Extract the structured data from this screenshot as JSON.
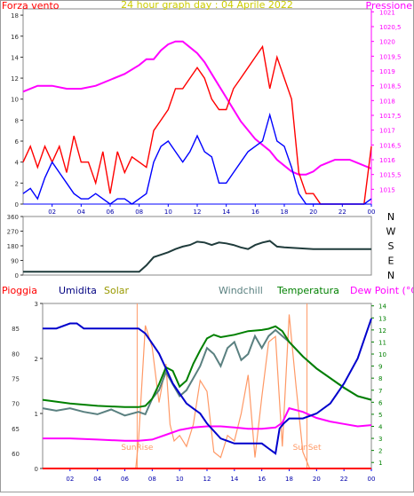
{
  "chart_data": [
    {
      "type": "line",
      "title": "24 hour graph day : 04 Aprile 2022",
      "left_label": "Forza vento",
      "right_label": "Pressione",
      "x_ticks": [
        "02",
        "04",
        "06",
        "08",
        "10",
        "12",
        "14",
        "16",
        "18",
        "20",
        "22",
        "00"
      ],
      "y_left_ticks": [
        "0",
        "2",
        "4",
        "6",
        "8",
        "10",
        "12",
        "14",
        "16",
        "18"
      ],
      "y_left_range": [
        0,
        18.6
      ],
      "y_right_ticks": [
        "1015",
        "1015,5",
        "1016",
        "1016,5",
        "1017",
        "1017,5",
        "1018",
        "1018,5",
        "1019",
        "1019,5",
        "1020",
        "1020,5",
        "1021"
      ],
      "y_right_range": [
        1014.5,
        1021.1
      ],
      "series": [
        {
          "axis": "right",
          "color": "#ff00ff",
          "x": [
            0,
            1,
            2,
            3,
            4,
            5,
            6,
            7,
            8,
            8.5,
            9,
            9.5,
            10,
            10.5,
            11,
            11.5,
            12,
            12.5,
            13,
            13.5,
            14,
            14.5,
            15,
            15.5,
            16,
            16.5,
            17,
            17.5,
            18,
            18.5,
            19,
            19.5,
            20,
            20.5,
            21,
            21.5,
            22,
            22.5,
            23,
            24
          ],
          "values": [
            1018.3,
            1018.5,
            1018.5,
            1018.4,
            1018.4,
            1018.5,
            1018.7,
            1018.9,
            1019.2,
            1019.4,
            1019.4,
            1019.7,
            1019.9,
            1020.0,
            1020.0,
            1019.8,
            1019.6,
            1019.3,
            1018.9,
            1018.5,
            1018.1,
            1017.7,
            1017.3,
            1017.0,
            1016.7,
            1016.5,
            1016.3,
            1016.0,
            1015.8,
            1015.6,
            1015.5,
            1015.5,
            1015.6,
            1015.8,
            1015.9,
            1016.0,
            1016.0,
            1016.0,
            1015.9,
            1015.7
          ]
        },
        {
          "axis": "left",
          "color": "#ff0000",
          "x": [
            0,
            0.5,
            1,
            1.5,
            2,
            2.5,
            3,
            3.5,
            4,
            4.5,
            5,
            5.5,
            6,
            6.5,
            7,
            7.5,
            8,
            8.5,
            9,
            9.5,
            10,
            10.5,
            11,
            11.5,
            12,
            12.5,
            13,
            13.5,
            14,
            14.5,
            15,
            15.5,
            16,
            16.5,
            17,
            17.5,
            18,
            18.5,
            19,
            19.5,
            20,
            20.5,
            21,
            21.5,
            22,
            22.5,
            23,
            23.5,
            24
          ],
          "values": [
            4,
            5.5,
            3.5,
            5.5,
            4,
            5.5,
            3,
            6.5,
            4,
            4,
            2,
            5,
            1,
            5,
            3,
            4.5,
            4,
            3.5,
            7,
            8,
            9,
            11,
            11,
            12,
            13,
            12,
            10,
            9,
            9,
            11,
            12,
            13,
            14,
            15,
            11,
            14,
            12,
            10,
            3,
            1,
            1,
            0,
            0,
            0,
            0,
            0,
            0,
            0,
            5.5
          ]
        },
        {
          "axis": "left",
          "color": "#0000ff",
          "x": [
            0,
            0.5,
            1,
            1.5,
            2,
            2.5,
            3,
            3.5,
            4,
            4.5,
            5,
            5.5,
            6,
            6.5,
            7,
            7.5,
            8,
            8.5,
            9,
            9.5,
            10,
            10.5,
            11,
            11.5,
            12,
            12.5,
            13,
            13.5,
            14,
            14.5,
            15,
            15.5,
            16,
            16.5,
            17,
            17.5,
            18,
            18.5,
            19,
            19.5,
            20,
            20.5,
            21,
            21.5,
            22,
            22.5,
            23,
            23.5,
            24
          ],
          "values": [
            1,
            1.5,
            0.5,
            2.5,
            4,
            3,
            2,
            1,
            0.5,
            0.5,
            1,
            0.5,
            0,
            0.5,
            0.5,
            0,
            0.5,
            1,
            4,
            5.5,
            6,
            5,
            4,
            5,
            6.5,
            5,
            4.5,
            2,
            2,
            3,
            4,
            5,
            5.5,
            6,
            8.5,
            6,
            5.5,
            3.5,
            1,
            0,
            0,
            0,
            0,
            0,
            0,
            0,
            0,
            0,
            0.5
          ]
        }
      ]
    },
    {
      "type": "line",
      "right_labels": [
        "N",
        "W",
        "S",
        "E",
        "N"
      ],
      "y_left_ticks": [
        "0",
        "90",
        "180",
        "270",
        "360"
      ],
      "y_range": [
        0,
        360
      ],
      "series": [
        {
          "color": "#1f3b3b",
          "x": [
            0,
            6,
            8,
            8.5,
            9,
            9.5,
            10,
            10.5,
            11,
            11.5,
            12,
            12.5,
            13,
            13.5,
            14,
            14.5,
            15,
            15.5,
            16,
            16.5,
            17,
            17.5,
            18,
            19,
            20,
            22,
            24
          ],
          "values": [
            20,
            20,
            20,
            60,
            110,
            125,
            140,
            160,
            175,
            185,
            205,
            200,
            185,
            200,
            195,
            185,
            170,
            160,
            185,
            200,
            210,
            175,
            170,
            165,
            160,
            160,
            160
          ]
        }
      ]
    },
    {
      "type": "line",
      "legend": [
        "Pioggia",
        "Umidita",
        "Solar",
        "Windchill",
        "Temperatura",
        "Dew Point (°C)"
      ],
      "y_left_ticks": [
        "60",
        "65",
        "70",
        "75",
        "80",
        "85"
      ],
      "y_left_range": [
        57,
        90
      ],
      "y_rain_ticks": [
        "0",
        "1",
        "2",
        "3"
      ],
      "y_right_ticks": [
        "1",
        "2",
        "3",
        "4",
        "5",
        "6",
        "7",
        "8",
        "9",
        "10",
        "11",
        "12",
        "13",
        "14"
      ],
      "y_right_range": [
        0.5,
        14.2
      ],
      "annotations": [
        "SunRise",
        "SunSet"
      ],
      "sunrise_hour": 6.9,
      "sunset_hour": 19.3,
      "series": [
        {
          "name": "Umidita",
          "color": "#0000cc",
          "x": [
            0,
            1,
            2,
            2.5,
            3,
            4,
            5,
            6,
            7,
            7.5,
            8,
            8.5,
            9,
            9.5,
            10,
            10.5,
            11,
            11.5,
            12,
            13,
            14,
            15,
            16,
            16.5,
            17,
            17.3,
            17.6,
            18,
            19,
            20,
            21,
            22,
            23,
            24
          ],
          "values": [
            85,
            85,
            86,
            86,
            85,
            85,
            85,
            85,
            85,
            84,
            82,
            80,
            77,
            74,
            72,
            70,
            69,
            68,
            66,
            63,
            62,
            62,
            62,
            61,
            60,
            65,
            66,
            67,
            67,
            68,
            70,
            74,
            79,
            87
          ]
        },
        {
          "name": "Dew Point",
          "color": "#ff00ff",
          "x": [
            0,
            2,
            4,
            6,
            7,
            8,
            9,
            10,
            11,
            12,
            13,
            14,
            15,
            16,
            17,
            17.5,
            18,
            19,
            20,
            21,
            22,
            23,
            24
          ],
          "values": [
            3.0,
            3.0,
            2.9,
            2.8,
            2.8,
            2.9,
            3.3,
            3.7,
            3.9,
            4.0,
            4.0,
            3.9,
            3.8,
            3.8,
            3.9,
            4.3,
            5.5,
            5.2,
            4.7,
            4.4,
            4.2,
            4.0,
            4.1
          ]
        },
        {
          "name": "Temperatura",
          "color": "#008000",
          "x": [
            0,
            2,
            4,
            6,
            7,
            7.5,
            8,
            8.5,
            9,
            9.5,
            10,
            10.5,
            11,
            11.5,
            12,
            12.5,
            13,
            14,
            15,
            16,
            16.5,
            17,
            17.5,
            18,
            19,
            20,
            21,
            22,
            23,
            24
          ],
          "values": [
            6.2,
            5.9,
            5.7,
            5.6,
            5.6,
            5.7,
            6.3,
            7.5,
            8.9,
            8.6,
            7.3,
            7.8,
            9.2,
            10.3,
            11.3,
            11.6,
            11.4,
            11.6,
            11.9,
            12.0,
            12.1,
            12.3,
            11.9,
            11.0,
            9.8,
            8.8,
            8.0,
            7.2,
            6.5,
            6.2
          ]
        },
        {
          "name": "Windchill",
          "color": "#5a8080",
          "x": [
            0,
            1,
            2,
            3,
            4,
            5,
            6,
            7,
            7.5,
            8,
            8.5,
            9,
            9.5,
            10,
            10.5,
            11,
            11.5,
            12,
            12.5,
            13,
            13.5,
            14,
            14.5,
            15,
            15.5,
            16,
            16.5,
            17,
            17.5,
            18,
            19,
            20,
            21,
            22,
            23,
            24
          ],
          "values": [
            5.5,
            5.3,
            5.5,
            5.2,
            5.0,
            5.4,
            4.9,
            5.2,
            5.0,
            6.3,
            7.0,
            8.5,
            7.5,
            6.5,
            7.0,
            8.0,
            9.0,
            10.5,
            10.0,
            9.0,
            10.5,
            11.0,
            9.5,
            10.0,
            11.5,
            10.5,
            11.5,
            12.0,
            11.5,
            11.0,
            9.8,
            8.8,
            8.0,
            7.2,
            6.5,
            6.2
          ]
        },
        {
          "name": "Solar",
          "color": "#ff9966",
          "scale": "rain",
          "x": [
            0,
            6.8,
            7,
            7.5,
            8,
            8.5,
            9,
            9.3,
            9.6,
            10,
            10.5,
            11,
            11.5,
            12,
            12.5,
            13,
            13.5,
            14,
            14.5,
            15,
            15.5,
            16,
            16.5,
            17,
            17.5,
            18,
            18.5,
            19,
            19.5,
            24
          ],
          "values": [
            0,
            0,
            0.5,
            2.6,
            2.2,
            1.2,
            1.9,
            0.8,
            0.5,
            0.6,
            0.4,
            0.8,
            1.6,
            1.4,
            0.3,
            0.2,
            0.6,
            0.5,
            1.0,
            1.7,
            0.2,
            1.3,
            2.3,
            2.4,
            0.4,
            2.8,
            1.5,
            0.3,
            0,
            0
          ]
        },
        {
          "name": "Pioggia",
          "color": "#ff0000",
          "scale": "rain",
          "x": [
            0,
            24
          ],
          "values": [
            0,
            0
          ]
        }
      ]
    }
  ],
  "x_ticks": [
    "02",
    "04",
    "06",
    "08",
    "10",
    "12",
    "14",
    "16",
    "18",
    "20",
    "22",
    "00"
  ]
}
